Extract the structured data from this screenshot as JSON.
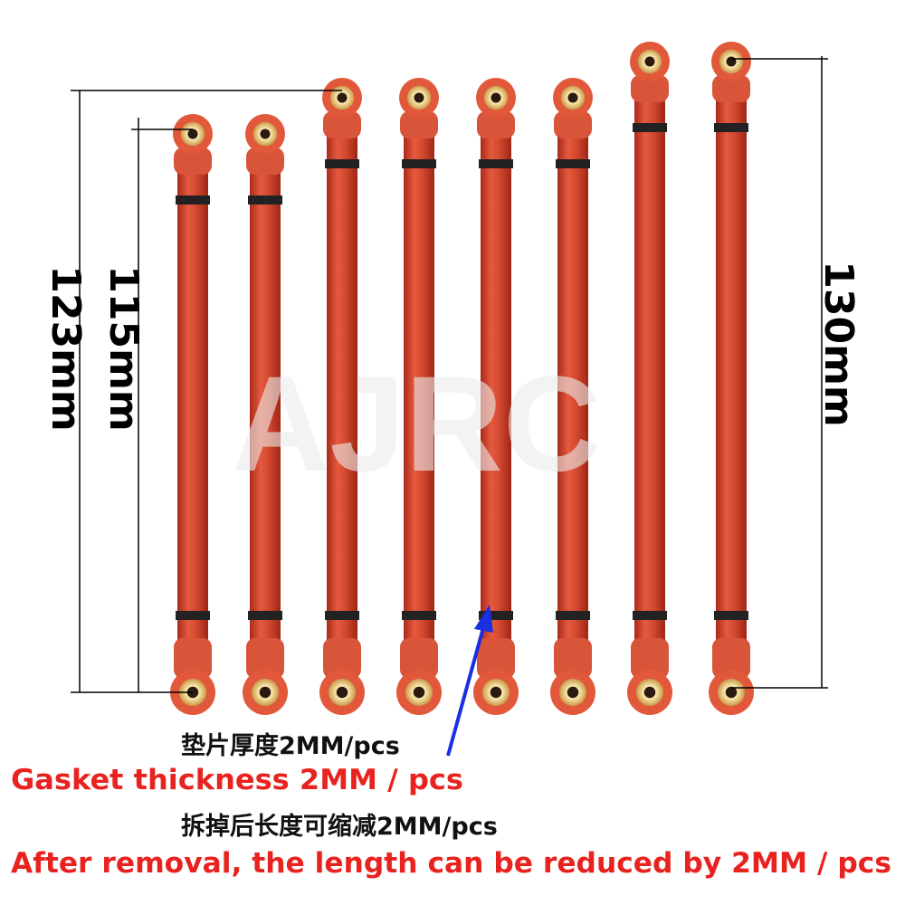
{
  "watermark": "AJRC",
  "dimensions": {
    "left_outer": "123mm",
    "left_inner": "115mm",
    "right": "130mm"
  },
  "captions": {
    "gasket_cn": "垫片厚度2MM/pcs",
    "gasket_en": "Gasket thickness 2MM / pcs",
    "removal_cn": "拆掉后长度可缩减2MM/pcs",
    "removal_en": "After removal, the length can be reduced by 2MM / pcs"
  }
}
